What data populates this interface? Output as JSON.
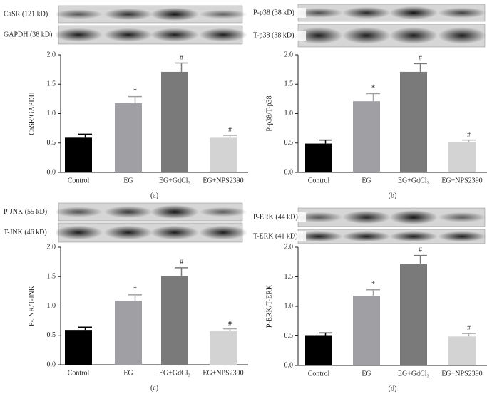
{
  "chart_data": [
    {
      "type": "bar",
      "panel_label": "(a)",
      "y_label": "CaSR/GAPDH",
      "blot_labels": [
        "CaSR (121 kD)",
        "GAPDH (38 kD)"
      ],
      "categories": [
        "Control",
        "EG",
        "EG+GdCl₃",
        "EG+NPS2390"
      ],
      "values": [
        0.59,
        1.18,
        1.71,
        0.59
      ],
      "errors": [
        0.06,
        0.11,
        0.15,
        0.04
      ],
      "annotations": [
        null,
        "*",
        "#",
        "#"
      ],
      "colors": [
        "#000000",
        "#a0a0a4",
        "#7a7a7a",
        "#d3d3d3"
      ],
      "ylim": [
        0,
        2
      ],
      "yticks": [
        {
          "value": 0,
          "label": "0.0"
        },
        0.5,
        {
          "value": 1,
          "label": "1.0"
        },
        1.5,
        {
          "value": 2,
          "label": "2.0"
        }
      ]
    },
    {
      "type": "bar",
      "panel_label": "(b)",
      "y_label": "P-p38/T-p38",
      "blot_labels": [
        "P-p38 (38 kD)",
        "T-p38 (38 kD)"
      ],
      "categories": [
        "Control",
        "EG",
        "EG+GdCl₃",
        "EG+NPS2390"
      ],
      "values": [
        0.49,
        1.21,
        1.71,
        0.51
      ],
      "errors": [
        0.06,
        0.13,
        0.14,
        0.04
      ],
      "annotations": [
        null,
        "*",
        "#",
        "#"
      ],
      "colors": [
        "#000000",
        "#a0a0a4",
        "#7a7a7a",
        "#d3d3d3"
      ],
      "ylim": [
        0,
        2
      ],
      "yticks": [
        {
          "value": 0,
          "label": "0.0"
        },
        0.5,
        {
          "value": 1,
          "label": "1.0"
        },
        1.5,
        {
          "value": 2,
          "label": "2.0"
        }
      ]
    },
    {
      "type": "bar",
      "panel_label": "(c)",
      "y_label": "P-JNK/T-JNK",
      "blot_labels": [
        "P-JNK (55 kD)",
        "T-JNK (46 kD)"
      ],
      "categories": [
        "Control",
        "EG",
        "EG+GdCl₃",
        "EG+NPS2390"
      ],
      "values": [
        0.58,
        1.09,
        1.51,
        0.57
      ],
      "errors": [
        0.06,
        0.1,
        0.14,
        0.04
      ],
      "annotations": [
        null,
        "*",
        "#",
        "#"
      ],
      "colors": [
        "#000000",
        "#a0a0a4",
        "#7a7a7a",
        "#d3d3d3"
      ],
      "ylim": [
        0,
        2
      ],
      "yticks": [
        {
          "value": 0,
          "label": "0.0"
        },
        0.5,
        {
          "value": 1,
          "label": "1.0"
        },
        1.5,
        {
          "value": 2,
          "label": "2.0"
        }
      ]
    },
    {
      "type": "bar",
      "panel_label": "(d)",
      "y_label": "P-ERK/T-ERK",
      "blot_labels": [
        "P-ERK (44 kD)",
        "T-ERK (41 kD)"
      ],
      "categories": [
        "Control",
        "EG",
        "EG+GdCl₃",
        "EG+NPS2390"
      ],
      "values": [
        0.5,
        1.18,
        1.72,
        0.49
      ],
      "errors": [
        0.05,
        0.1,
        0.14,
        0.05
      ],
      "annotations": [
        null,
        "*",
        "#",
        "#"
      ],
      "colors": [
        "#000000",
        "#a0a0a4",
        "#7a7a7a",
        "#d3d3d3"
      ],
      "ylim": [
        0,
        2
      ],
      "yticks": [
        {
          "value": 0,
          "label": "0.0"
        },
        0.5,
        {
          "value": 1,
          "label": "1.0"
        },
        1.5,
        {
          "value": 2,
          "label": "2.0"
        }
      ]
    }
  ]
}
